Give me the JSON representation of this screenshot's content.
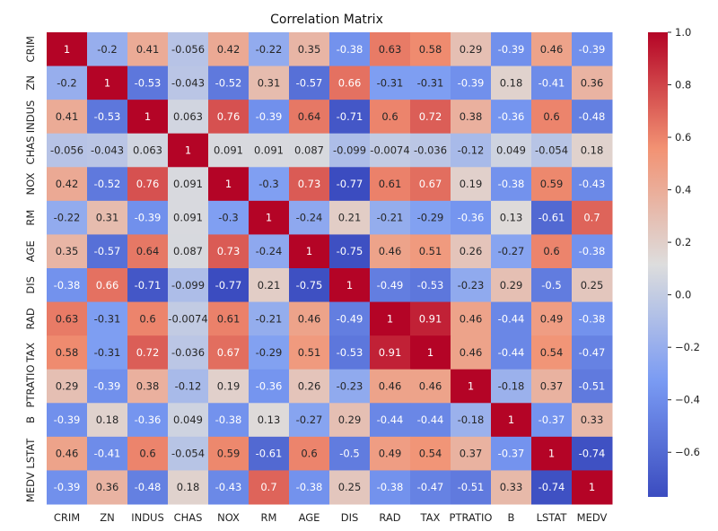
{
  "chart_data": {
    "type": "heatmap",
    "title": "Correlation Matrix",
    "colormap": "coolwarm",
    "vmin": -0.77,
    "vmax": 1.0,
    "low_color": "#3b4cc0",
    "mid_color": "#dddddd",
    "high_color": "#b40426",
    "labels": [
      "CRIM",
      "ZN",
      "INDUS",
      "CHAS",
      "NOX",
      "RM",
      "AGE",
      "DIS",
      "RAD",
      "TAX",
      "PTRATIO",
      "B",
      "LSTAT",
      "MEDV"
    ],
    "matrix": [
      [
        "1",
        "-0.2",
        "0.41",
        "-0.056",
        "0.42",
        "-0.22",
        "0.35",
        "-0.38",
        "0.63",
        "0.58",
        "0.29",
        "-0.39",
        "0.46",
        "-0.39"
      ],
      [
        "-0.2",
        "1",
        "-0.53",
        "-0.043",
        "-0.52",
        "0.31",
        "-0.57",
        "0.66",
        "-0.31",
        "-0.31",
        "-0.39",
        "0.18",
        "-0.41",
        "0.36"
      ],
      [
        "0.41",
        "-0.53",
        "1",
        "0.063",
        "0.76",
        "-0.39",
        "0.64",
        "-0.71",
        "0.6",
        "0.72",
        "0.38",
        "-0.36",
        "0.6",
        "-0.48"
      ],
      [
        "-0.056",
        "-0.043",
        "0.063",
        "1",
        "0.091",
        "0.091",
        "0.087",
        "-0.099",
        "-0.0074",
        "-0.036",
        "-0.12",
        "0.049",
        "-0.054",
        "0.18"
      ],
      [
        "0.42",
        "-0.52",
        "0.76",
        "0.091",
        "1",
        "-0.3",
        "0.73",
        "-0.77",
        "0.61",
        "0.67",
        "0.19",
        "-0.38",
        "0.59",
        "-0.43"
      ],
      [
        "-0.22",
        "0.31",
        "-0.39",
        "0.091",
        "-0.3",
        "1",
        "-0.24",
        "0.21",
        "-0.21",
        "-0.29",
        "-0.36",
        "0.13",
        "-0.61",
        "0.7"
      ],
      [
        "0.35",
        "-0.57",
        "0.64",
        "0.087",
        "0.73",
        "-0.24",
        "1",
        "-0.75",
        "0.46",
        "0.51",
        "0.26",
        "-0.27",
        "0.6",
        "-0.38"
      ],
      [
        "-0.38",
        "0.66",
        "-0.71",
        "-0.099",
        "-0.77",
        "0.21",
        "-0.75",
        "1",
        "-0.49",
        "-0.53",
        "-0.23",
        "0.29",
        "-0.5",
        "0.25"
      ],
      [
        "0.63",
        "-0.31",
        "0.6",
        "-0.0074",
        "0.61",
        "-0.21",
        "0.46",
        "-0.49",
        "1",
        "0.91",
        "0.46",
        "-0.44",
        "0.49",
        "-0.38"
      ],
      [
        "0.58",
        "-0.31",
        "0.72",
        "-0.036",
        "0.67",
        "-0.29",
        "0.51",
        "-0.53",
        "0.91",
        "1",
        "0.46",
        "-0.44",
        "0.54",
        "-0.47"
      ],
      [
        "0.29",
        "-0.39",
        "0.38",
        "-0.12",
        "0.19",
        "-0.36",
        "0.26",
        "-0.23",
        "0.46",
        "0.46",
        "1",
        "-0.18",
        "0.37",
        "-0.51"
      ],
      [
        "-0.39",
        "0.18",
        "-0.36",
        "0.049",
        "-0.38",
        "0.13",
        "-0.27",
        "0.29",
        "-0.44",
        "-0.44",
        "-0.18",
        "1",
        "-0.37",
        "0.33"
      ],
      [
        "0.46",
        "-0.41",
        "0.6",
        "-0.054",
        "0.59",
        "-0.61",
        "0.6",
        "-0.5",
        "0.49",
        "0.54",
        "0.37",
        "-0.37",
        "1",
        "-0.74"
      ],
      [
        "-0.39",
        "0.36",
        "-0.48",
        "0.18",
        "-0.43",
        "0.7",
        "-0.38",
        "0.25",
        "-0.38",
        "-0.47",
        "-0.51",
        "0.33",
        "-0.74",
        "1"
      ]
    ],
    "colorbar_ticks": [
      {
        "value": 1.0,
        "label": "1.0"
      },
      {
        "value": 0.8,
        "label": "0.8"
      },
      {
        "value": 0.6,
        "label": "0.6"
      },
      {
        "value": 0.4,
        "label": "0.4"
      },
      {
        "value": 0.2,
        "label": "0.2"
      },
      {
        "value": 0.0,
        "label": "0.0"
      },
      {
        "value": -0.2,
        "label": "−0.2"
      },
      {
        "value": -0.4,
        "label": "−0.4"
      },
      {
        "value": -0.6,
        "label": "−0.6"
      }
    ]
  }
}
